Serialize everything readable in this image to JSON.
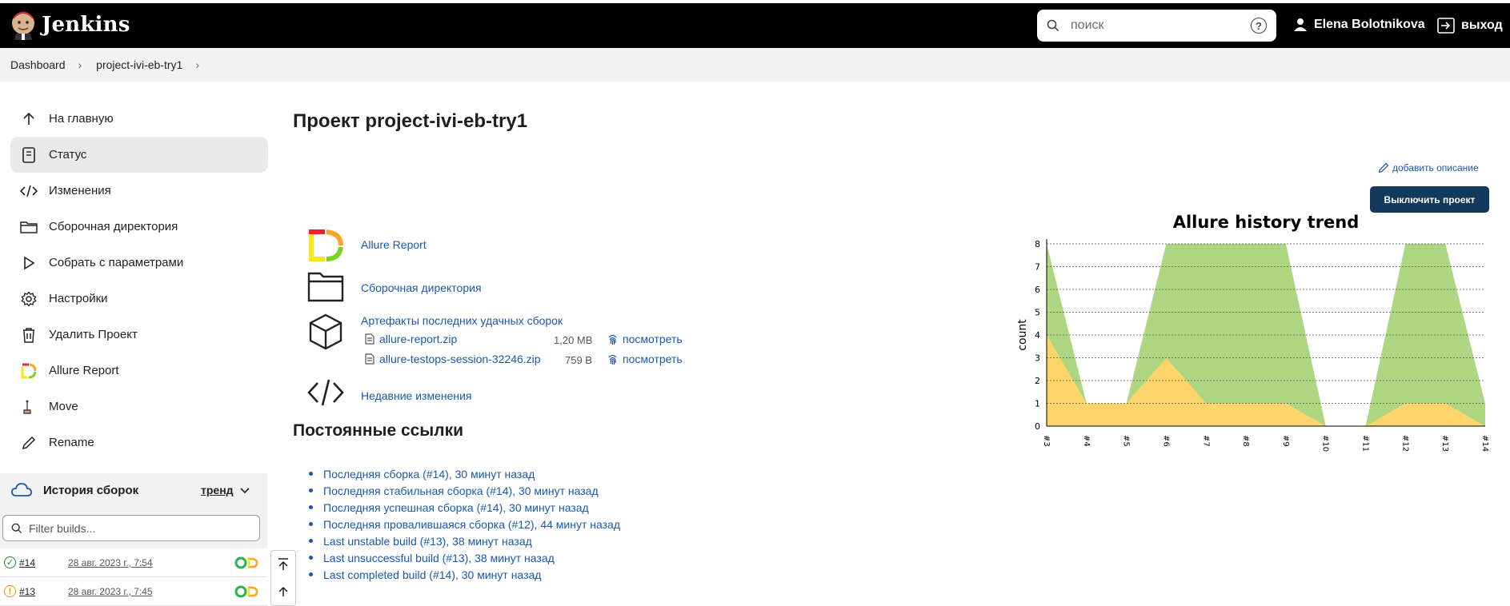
{
  "header": {
    "app_name": "Jenkins",
    "search_placeholder": "поиск",
    "help_label": "?",
    "user_name": "Elena Bolotnikova",
    "logout_label": "выход"
  },
  "breadcrumb": [
    "Dashboard",
    "project-ivi-eb-try1"
  ],
  "sidebar": {
    "items": [
      {
        "label": "На главную",
        "icon": "arrow-up-icon"
      },
      {
        "label": "Статус",
        "icon": "document-icon"
      },
      {
        "label": "Изменения",
        "icon": "code-icon"
      },
      {
        "label": "Сборочная директория",
        "icon": "folder-icon"
      },
      {
        "label": "Собрать с параметрами",
        "icon": "play-icon"
      },
      {
        "label": "Настройки",
        "icon": "gear-icon"
      },
      {
        "label": "Удалить Проект",
        "icon": "trash-icon"
      },
      {
        "label": "Allure Report",
        "icon": "allure-icon"
      },
      {
        "label": "Move",
        "icon": "move-icon"
      },
      {
        "label": "Rename",
        "icon": "pencil-icon"
      }
    ],
    "active_index": 1
  },
  "history": {
    "title": "История сборок",
    "trend_label": "тренд",
    "filter_placeholder": "Filter builds...",
    "builds": [
      {
        "number": "#14",
        "date": "28 авг. 2023 г., 7:54",
        "status": "success"
      },
      {
        "number": "#13",
        "date": "28 авг. 2023 г., 7:45",
        "status": "unstable"
      }
    ]
  },
  "main": {
    "title": "Проект project-ivi-eb-try1",
    "add_description": "добавить описание",
    "disable_button": "Выключить проект",
    "links": {
      "allure": "Allure Report",
      "workspace": "Сборочная директория",
      "artifacts": "Артефакты последних удачных сборок",
      "recent_changes": "Недавние изменения"
    },
    "artifacts": [
      {
        "name": "allure-report.zip",
        "size": "1,20 MB",
        "view": "посмотреть"
      },
      {
        "name": "allure-testops-session-32246.zip",
        "size": "759 B",
        "view": "посмотреть"
      }
    ],
    "permalinks_title": "Постоянные ссылки",
    "permalinks": [
      "Последняя сборка (#14), 30 минут назад",
      "Последняя стабильная сборка (#14), 30 минут назад",
      "Последняя успешная сборка (#14), 30 минут назад",
      "Последняя провалившаяся сборка (#12), 44 минут назад",
      "Last unstable build (#13), 38 минут назад",
      "Last unsuccessful build (#13), 38 минут назад",
      "Last completed build (#14), 30 минут назад"
    ]
  },
  "chart_data": {
    "type": "area",
    "title": "Allure history trend",
    "ylabel": "count",
    "xlabel": "",
    "ylim": [
      0,
      8
    ],
    "categories": [
      "#3",
      "#4",
      "#5",
      "#6",
      "#7",
      "#8",
      "#9",
      "#10",
      "#11",
      "#12",
      "#13",
      "#14"
    ],
    "series": [
      {
        "values": [
          4,
          1,
          1,
          3,
          1,
          1,
          1,
          0,
          0,
          1,
          1,
          0
        ],
        "color": "#ffd46b"
      },
      {
        "values": [
          8,
          1,
          1,
          8,
          8,
          8,
          8,
          0,
          0,
          8,
          8,
          1
        ],
        "color": "#acd681"
      }
    ],
    "grid": true
  },
  "colors": {
    "link": "#1a58b0",
    "header_bg": "#000000",
    "disable_button_bg": "#123a5c",
    "success": "#138a36",
    "unstable": "#e39d00"
  }
}
